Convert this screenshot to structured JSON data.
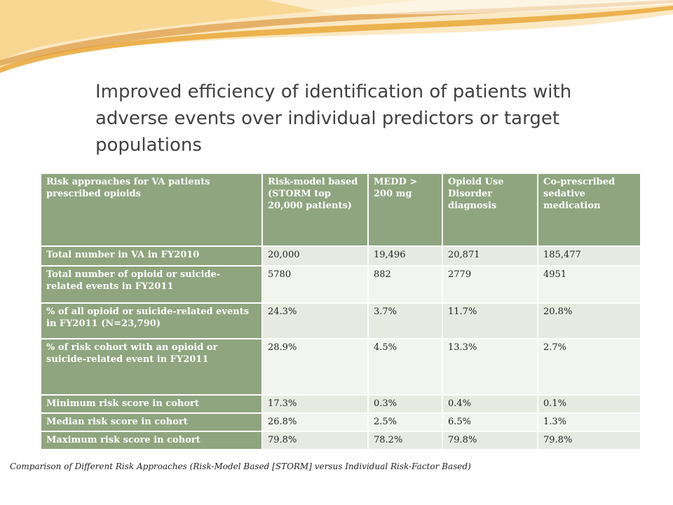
{
  "slide": {
    "title": "Improved efficiency of identification of patients with adverse events over individual predictors or target populations",
    "caption": "Comparison of Different Risk Approaches (Risk-Model Based [STORM] versus Individual Risk-Factor Based)"
  },
  "table": {
    "headers": [
      "Risk approaches for VA patients prescribed opioids",
      "Risk-model based (STORM top 20,000 patients)",
      "MEDD > 200 mg",
      "Opioid Use Disorder diagnosis",
      "Co-prescribed sedative medication"
    ],
    "rows": [
      {
        "label": "Total number in VA in FY2010",
        "values": [
          "20,000",
          "19,496",
          "20,871",
          "185,477"
        ]
      },
      {
        "label": "Total number of opioid or suicide-related events in FY2011",
        "values": [
          "5780",
          "882",
          "2779",
          "4951"
        ]
      },
      {
        "label": "% of all opioid or suicide-related events in FY2011 (N=23,790)",
        "values": [
          "24.3%",
          "3.7%",
          "11.7%",
          "20.8%"
        ]
      },
      {
        "label": "% of risk cohort with an opioid or suicide-related event in FY2011",
        "values": [
          "28.9%",
          "4.5%",
          "13.3%",
          "2.7%"
        ]
      },
      {
        "label": "Minimum risk score in cohort",
        "values": [
          "17.3%",
          "0.3%",
          "0.4%",
          "0.1%"
        ]
      },
      {
        "label": "Median risk score in cohort",
        "values": [
          "26.8%",
          "2.5%",
          "6.5%",
          "1.3%"
        ]
      },
      {
        "label": "Maximum risk score in cohort",
        "values": [
          "79.8%",
          "78.2%",
          "79.8%",
          "79.8%"
        ]
      }
    ]
  },
  "colors": {
    "header_green": "#8fa57f",
    "cell_light": "#e6ebe1",
    "cell_lighter": "#f2f4ef",
    "banner_gold": "#f0c060"
  }
}
